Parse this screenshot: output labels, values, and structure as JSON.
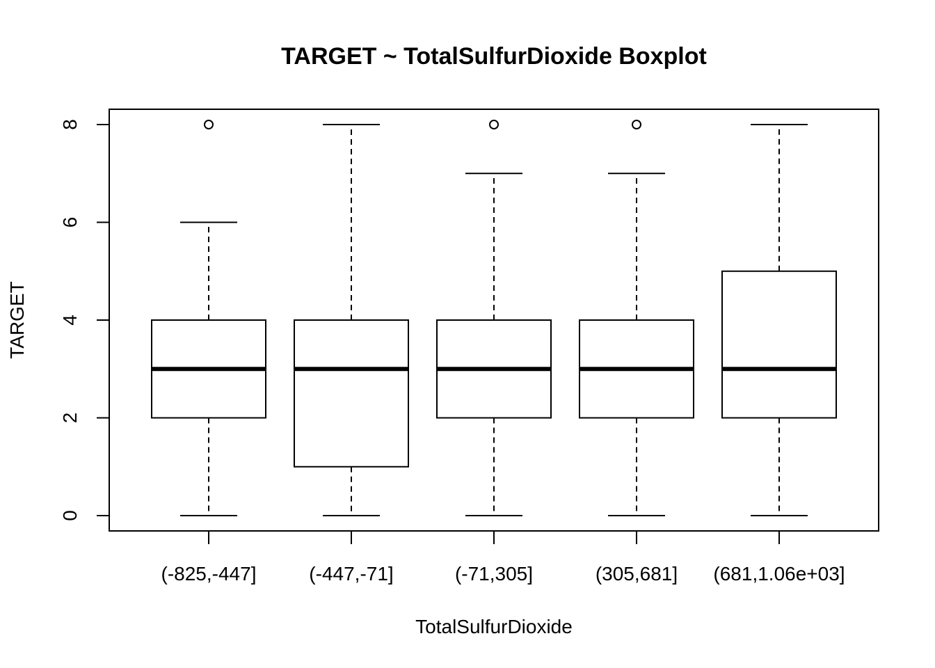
{
  "chart_data": {
    "type": "boxplot",
    "title": "TARGET ~ TotalSulfurDioxide Boxplot",
    "xlabel": "TotalSulfurDioxide",
    "ylabel": "TARGET",
    "ylim": [
      -0.3,
      8.3
    ],
    "y_ticks": [
      0,
      2,
      4,
      6,
      8
    ],
    "y_tick_labels": [
      "0",
      "2",
      "4",
      "6",
      "8"
    ],
    "categories": [
      "(-825,-447]",
      "(-447,-71]",
      "(-71,305]",
      "(305,681]",
      "(681,1.06e+03]"
    ],
    "boxes": [
      {
        "whisker_low": 0,
        "q1": 2,
        "median": 3,
        "q3": 4,
        "whisker_high": 6,
        "outliers": [
          8
        ]
      },
      {
        "whisker_low": 0,
        "q1": 1,
        "median": 3,
        "q3": 4,
        "whisker_high": 8,
        "outliers": []
      },
      {
        "whisker_low": 0,
        "q1": 2,
        "median": 3,
        "q3": 4,
        "whisker_high": 7,
        "outliers": [
          8
        ]
      },
      {
        "whisker_low": 0,
        "q1": 2,
        "median": 3,
        "q3": 4,
        "whisker_high": 7,
        "outliers": [
          8
        ]
      },
      {
        "whisker_low": 0,
        "q1": 2,
        "median": 3,
        "q3": 5,
        "whisker_high": 8,
        "outliers": []
      }
    ],
    "grid": false,
    "colors": {
      "stroke": "#000000",
      "fill": "#ffffff"
    }
  }
}
